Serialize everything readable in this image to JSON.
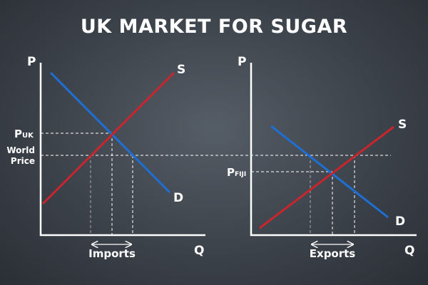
{
  "title": "UK MARKET FOR SUGAR",
  "left_panel": {
    "p_axis": "P",
    "q_axis": "Q",
    "supply": "S",
    "demand": "D",
    "price_main": "P",
    "price_sub": "UK",
    "world_price_line1": "World",
    "world_price_line2": "Price",
    "range_label": "Imports"
  },
  "right_panel": {
    "p_axis": "P",
    "q_axis": "Q",
    "supply": "S",
    "demand": "D",
    "price_main": "P",
    "price_sub": "FIJI",
    "range_label": "Exports"
  },
  "colors": {
    "supply": "#c8262c",
    "demand": "#1e6fd4",
    "text": "#ffffff"
  }
}
